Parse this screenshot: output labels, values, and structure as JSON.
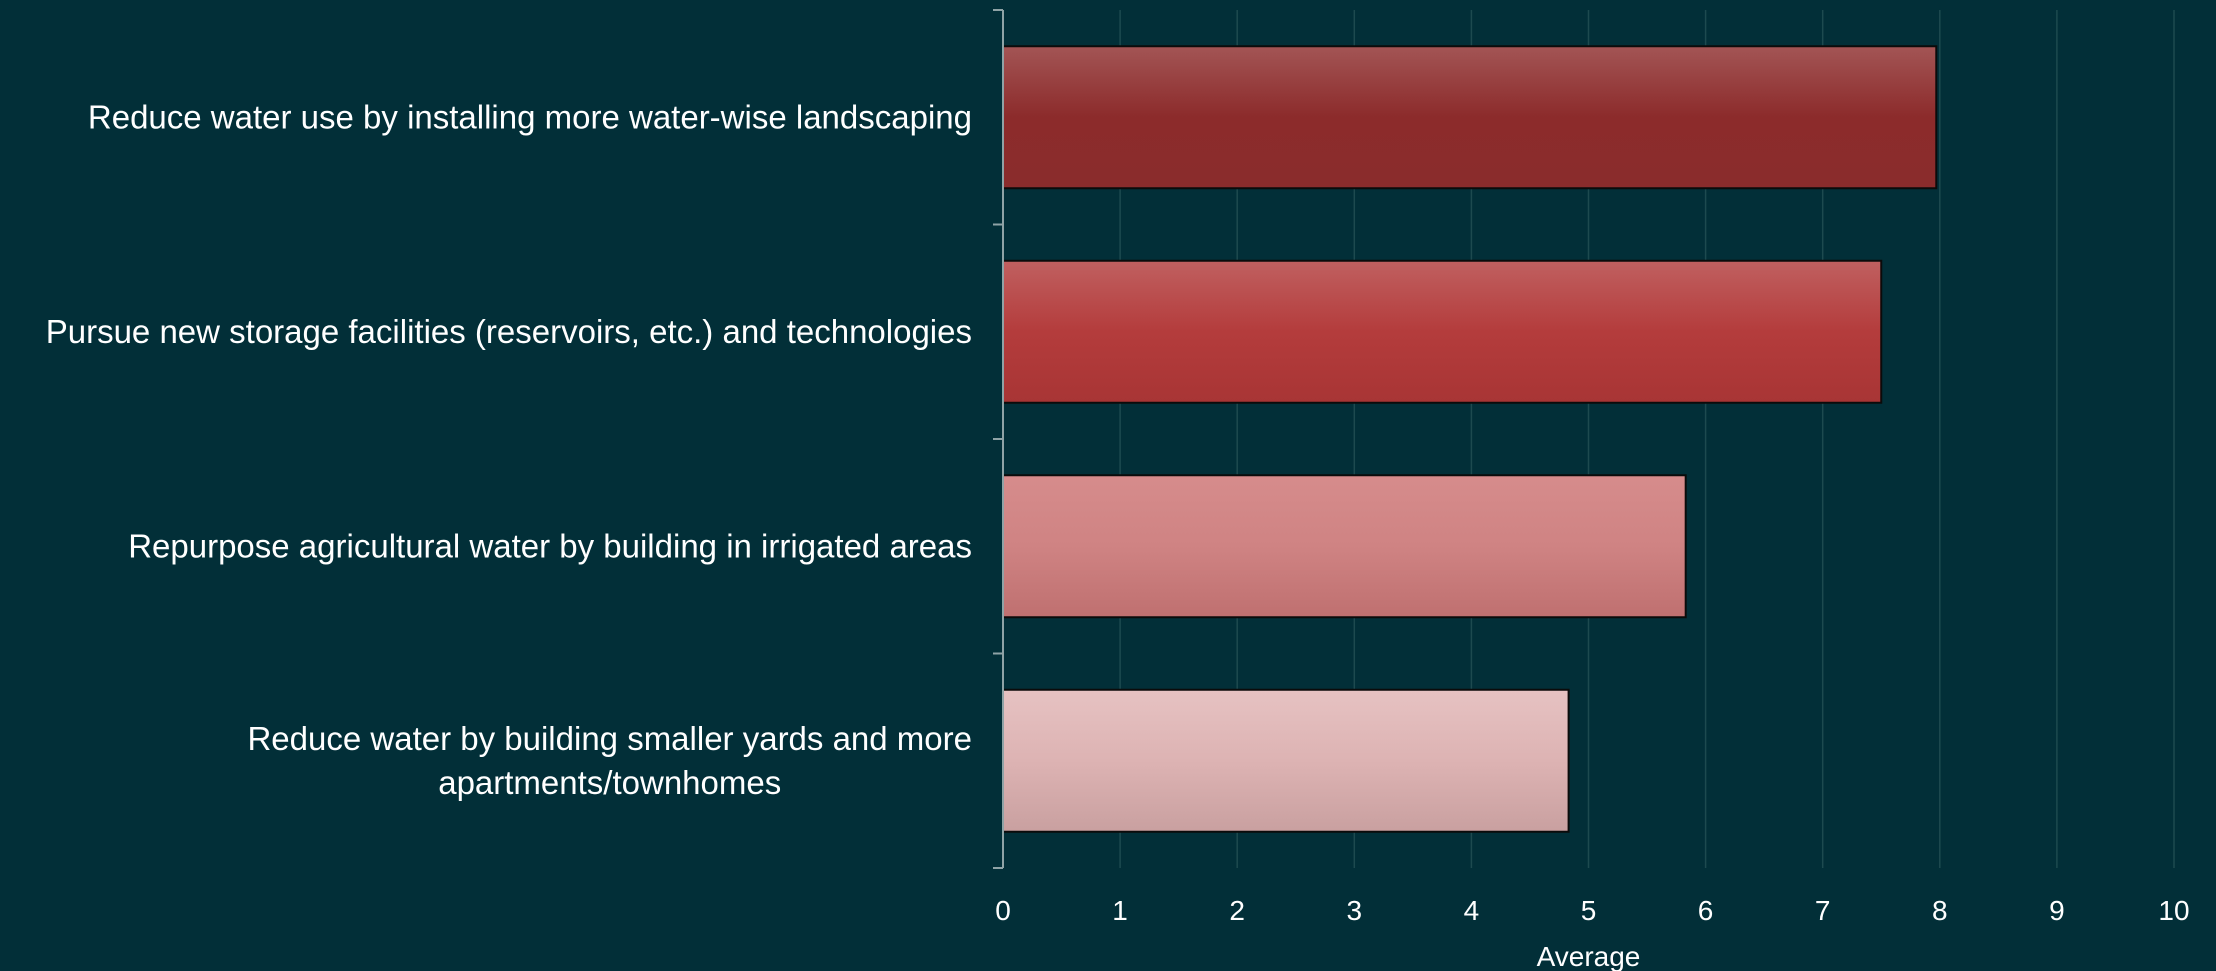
{
  "chart_data": {
    "type": "bar",
    "orientation": "horizontal",
    "categories": [
      [
        "Reduce water use by installing more water-wise landscaping"
      ],
      [
        "Pursue new storage facilities (reservoirs, etc.) and technologies"
      ],
      [
        "Repurpose agricultural water by building in irrigated areas"
      ],
      [
        "Reduce water by building smaller yards and more",
        "apartments/townhomes"
      ]
    ],
    "values": [
      7.97,
      7.5,
      5.83,
      4.83
    ],
    "xlim": [
      0,
      10
    ],
    "xticks": [
      "0",
      "1",
      "2",
      "3",
      "4",
      "5",
      "6",
      "7",
      "8",
      "9",
      "10"
    ],
    "xlabel": "Average",
    "ylabel": "",
    "title": "",
    "grid": "vertical",
    "legend": "none",
    "bar_colors": [
      [
        "#a35555",
        "#8c2b2b",
        "#8a2c2c"
      ],
      [
        "#c06060",
        "#b43c3c",
        "#a83535"
      ],
      [
        "#d68c8c",
        "#cf8383",
        "#bf7070"
      ],
      [
        "#e6c2c2",
        "#ddb3b3",
        "#c9a0a0"
      ]
    ],
    "colors": {
      "background": "#022f38",
      "grid": "#1d4a4f",
      "axis": "#8fa3a6",
      "text": "#ffffff",
      "bar_border": "#0b0b0b"
    }
  }
}
